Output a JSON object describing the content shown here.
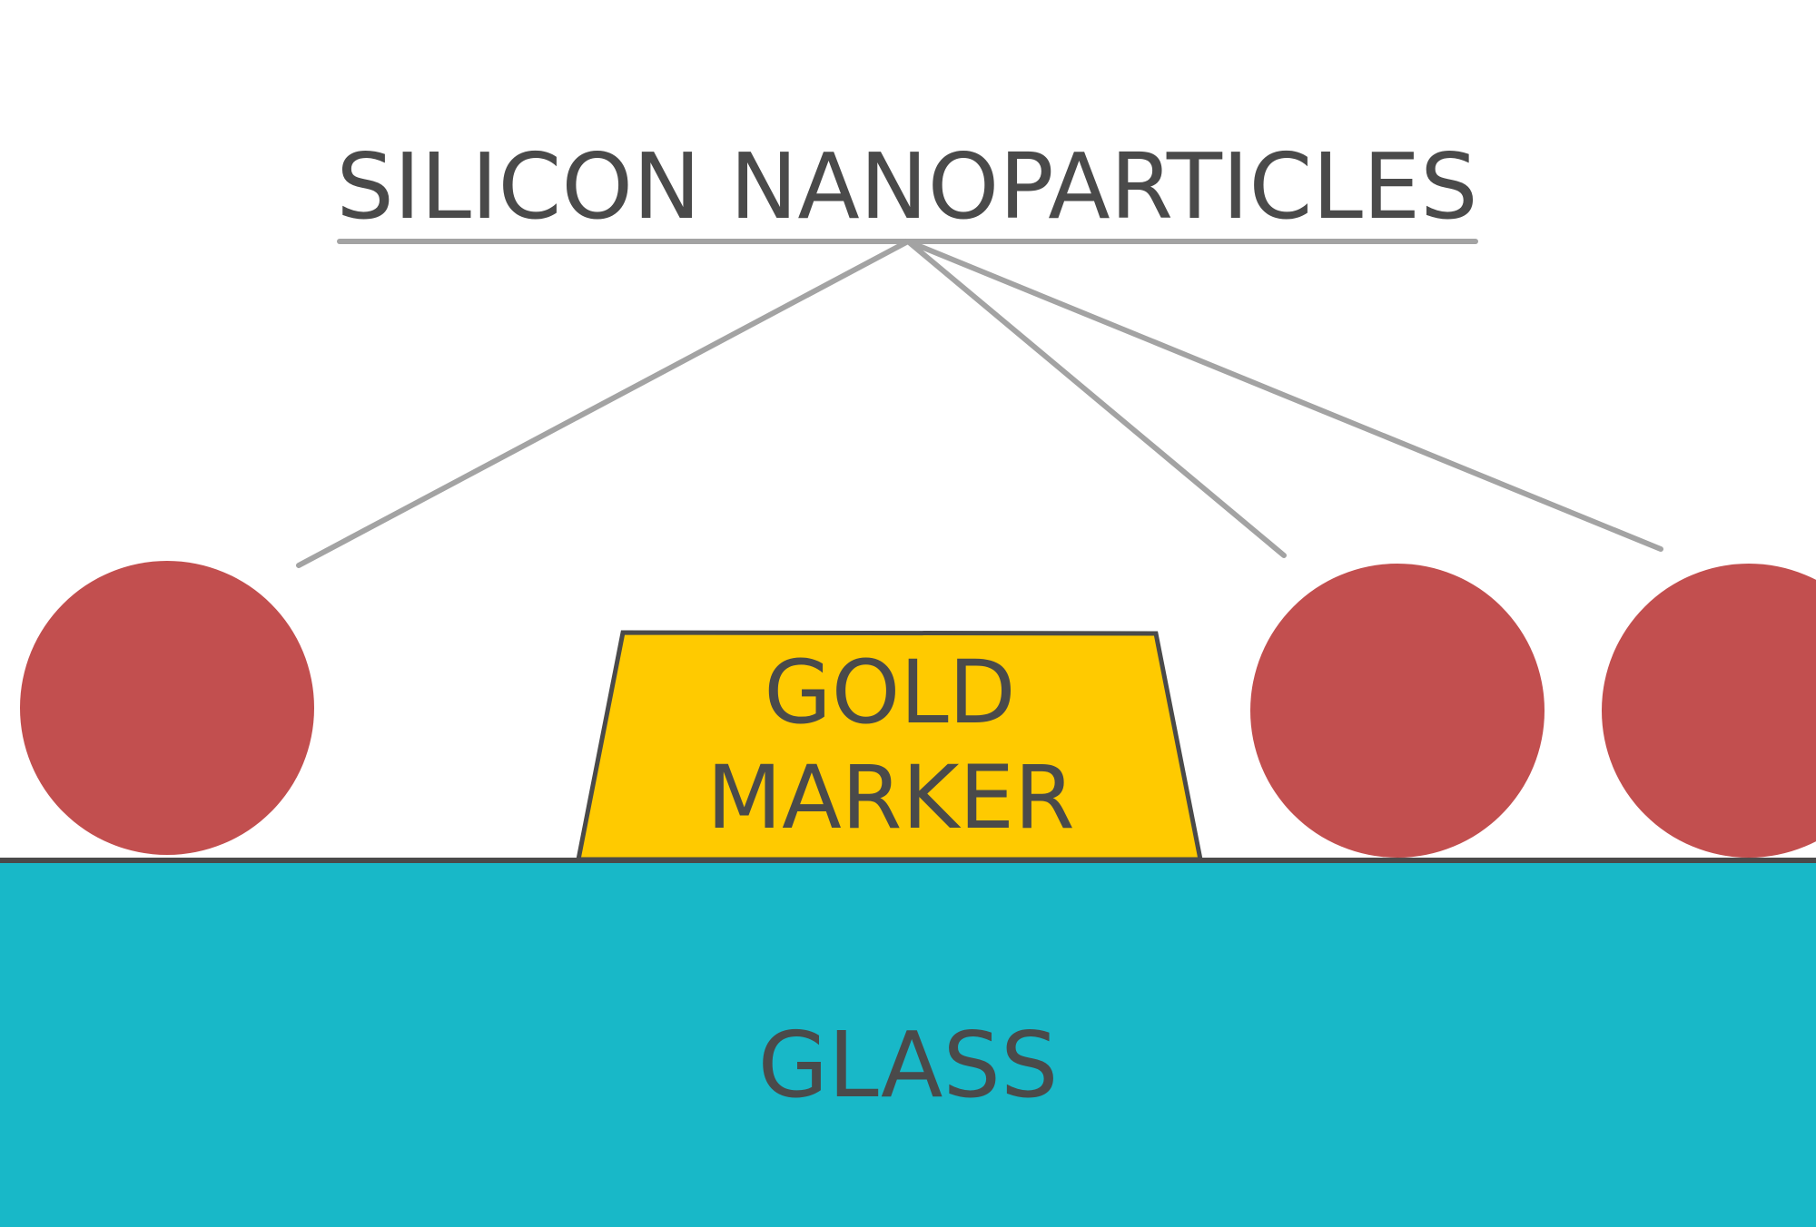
{
  "labels": {
    "title": "SILICON NANOPARTICLES",
    "marker_line1": "GOLD",
    "marker_line2": "MARKER",
    "substrate": "GLASS"
  },
  "colors": {
    "nanoparticle": "#c24f4f",
    "gold_marker": "#ffca00",
    "glass": "#18b8c8",
    "outline": "#4a4a4a",
    "leader_line": "#a3a3a3",
    "text": "#4a4a4a",
    "background": "#ffffff"
  }
}
